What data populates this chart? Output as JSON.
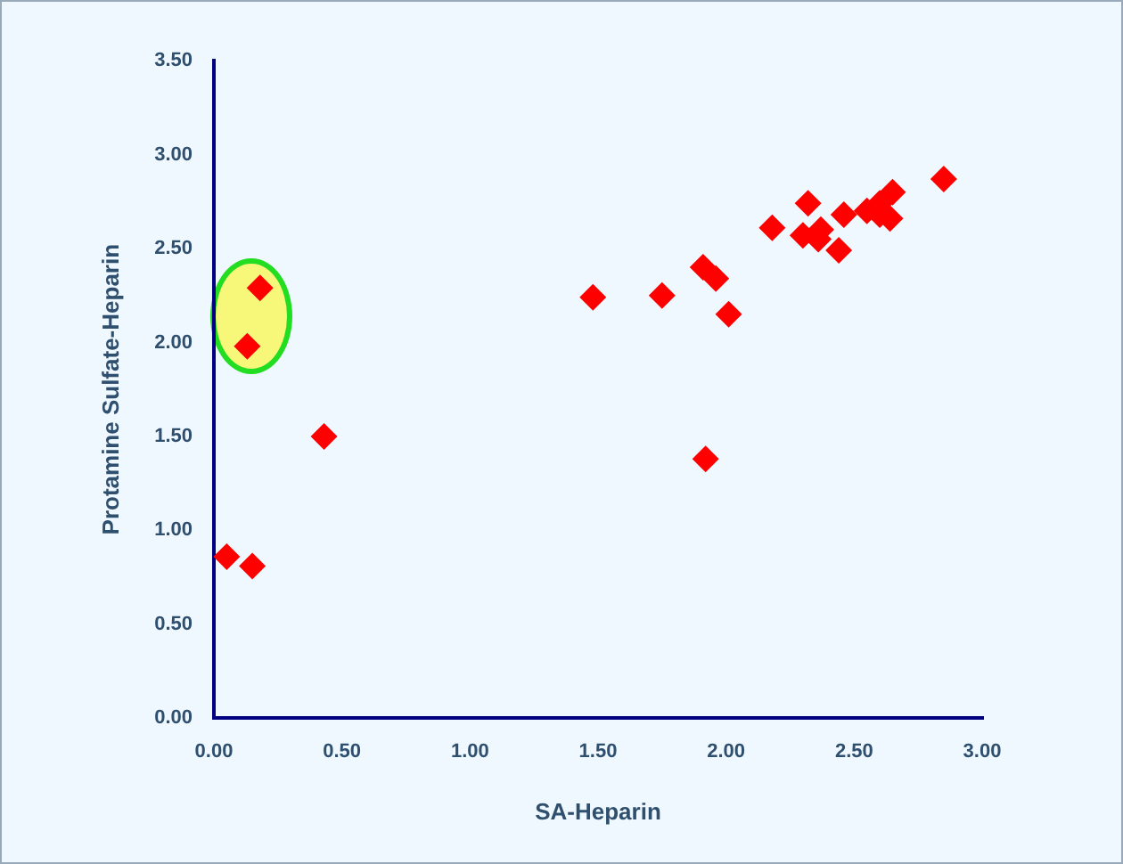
{
  "chart_data": {
    "type": "scatter",
    "xlabel": "SA-Heparin",
    "ylabel": "Protamine Sulfate-Heparin",
    "x": [
      0.05,
      0.15,
      0.13,
      0.18,
      0.43,
      1.48,
      1.75,
      1.91,
      1.96,
      2.01,
      1.92,
      2.18,
      2.32,
      2.3,
      2.36,
      2.37,
      2.46,
      2.44,
      2.55,
      2.6,
      2.65,
      2.64,
      2.6,
      2.85
    ],
    "series": [
      {
        "color": "#ff0000",
        "values": [
          0.86,
          0.81,
          1.98,
          2.29,
          1.5,
          2.24,
          2.25,
          2.4,
          2.34,
          2.15,
          1.38,
          2.61,
          2.74,
          2.57,
          2.55,
          2.6,
          2.68,
          2.49,
          2.7,
          2.74,
          2.8,
          2.66,
          2.68,
          2.87
        ]
      }
    ],
    "xlim": [
      0,
      3
    ],
    "ylim": [
      0,
      3.5
    ],
    "xticks": [
      {
        "value": 0,
        "label": "0.00"
      },
      {
        "value": 0.5,
        "label": "0.50"
      },
      {
        "value": 1,
        "label": "1.00"
      },
      {
        "value": 1.5,
        "label": "1.50"
      },
      {
        "value": 2,
        "label": "2.00"
      },
      {
        "value": 2.5,
        "label": "2.50"
      },
      {
        "value": 3,
        "label": "3.00"
      }
    ],
    "yticks": [
      {
        "value": 0,
        "label": "0.00"
      },
      {
        "value": 0.5,
        "label": "0.50"
      },
      {
        "value": 1,
        "label": "1.00"
      },
      {
        "value": 1.5,
        "label": "1.50"
      },
      {
        "value": 2,
        "label": "2.00"
      },
      {
        "value": 2.5,
        "label": "2.50"
      },
      {
        "value": 3,
        "label": "3.00"
      },
      {
        "value": 3.5,
        "label": "3.50"
      }
    ],
    "grid": false,
    "legend": false,
    "marker": "diamond"
  }
}
